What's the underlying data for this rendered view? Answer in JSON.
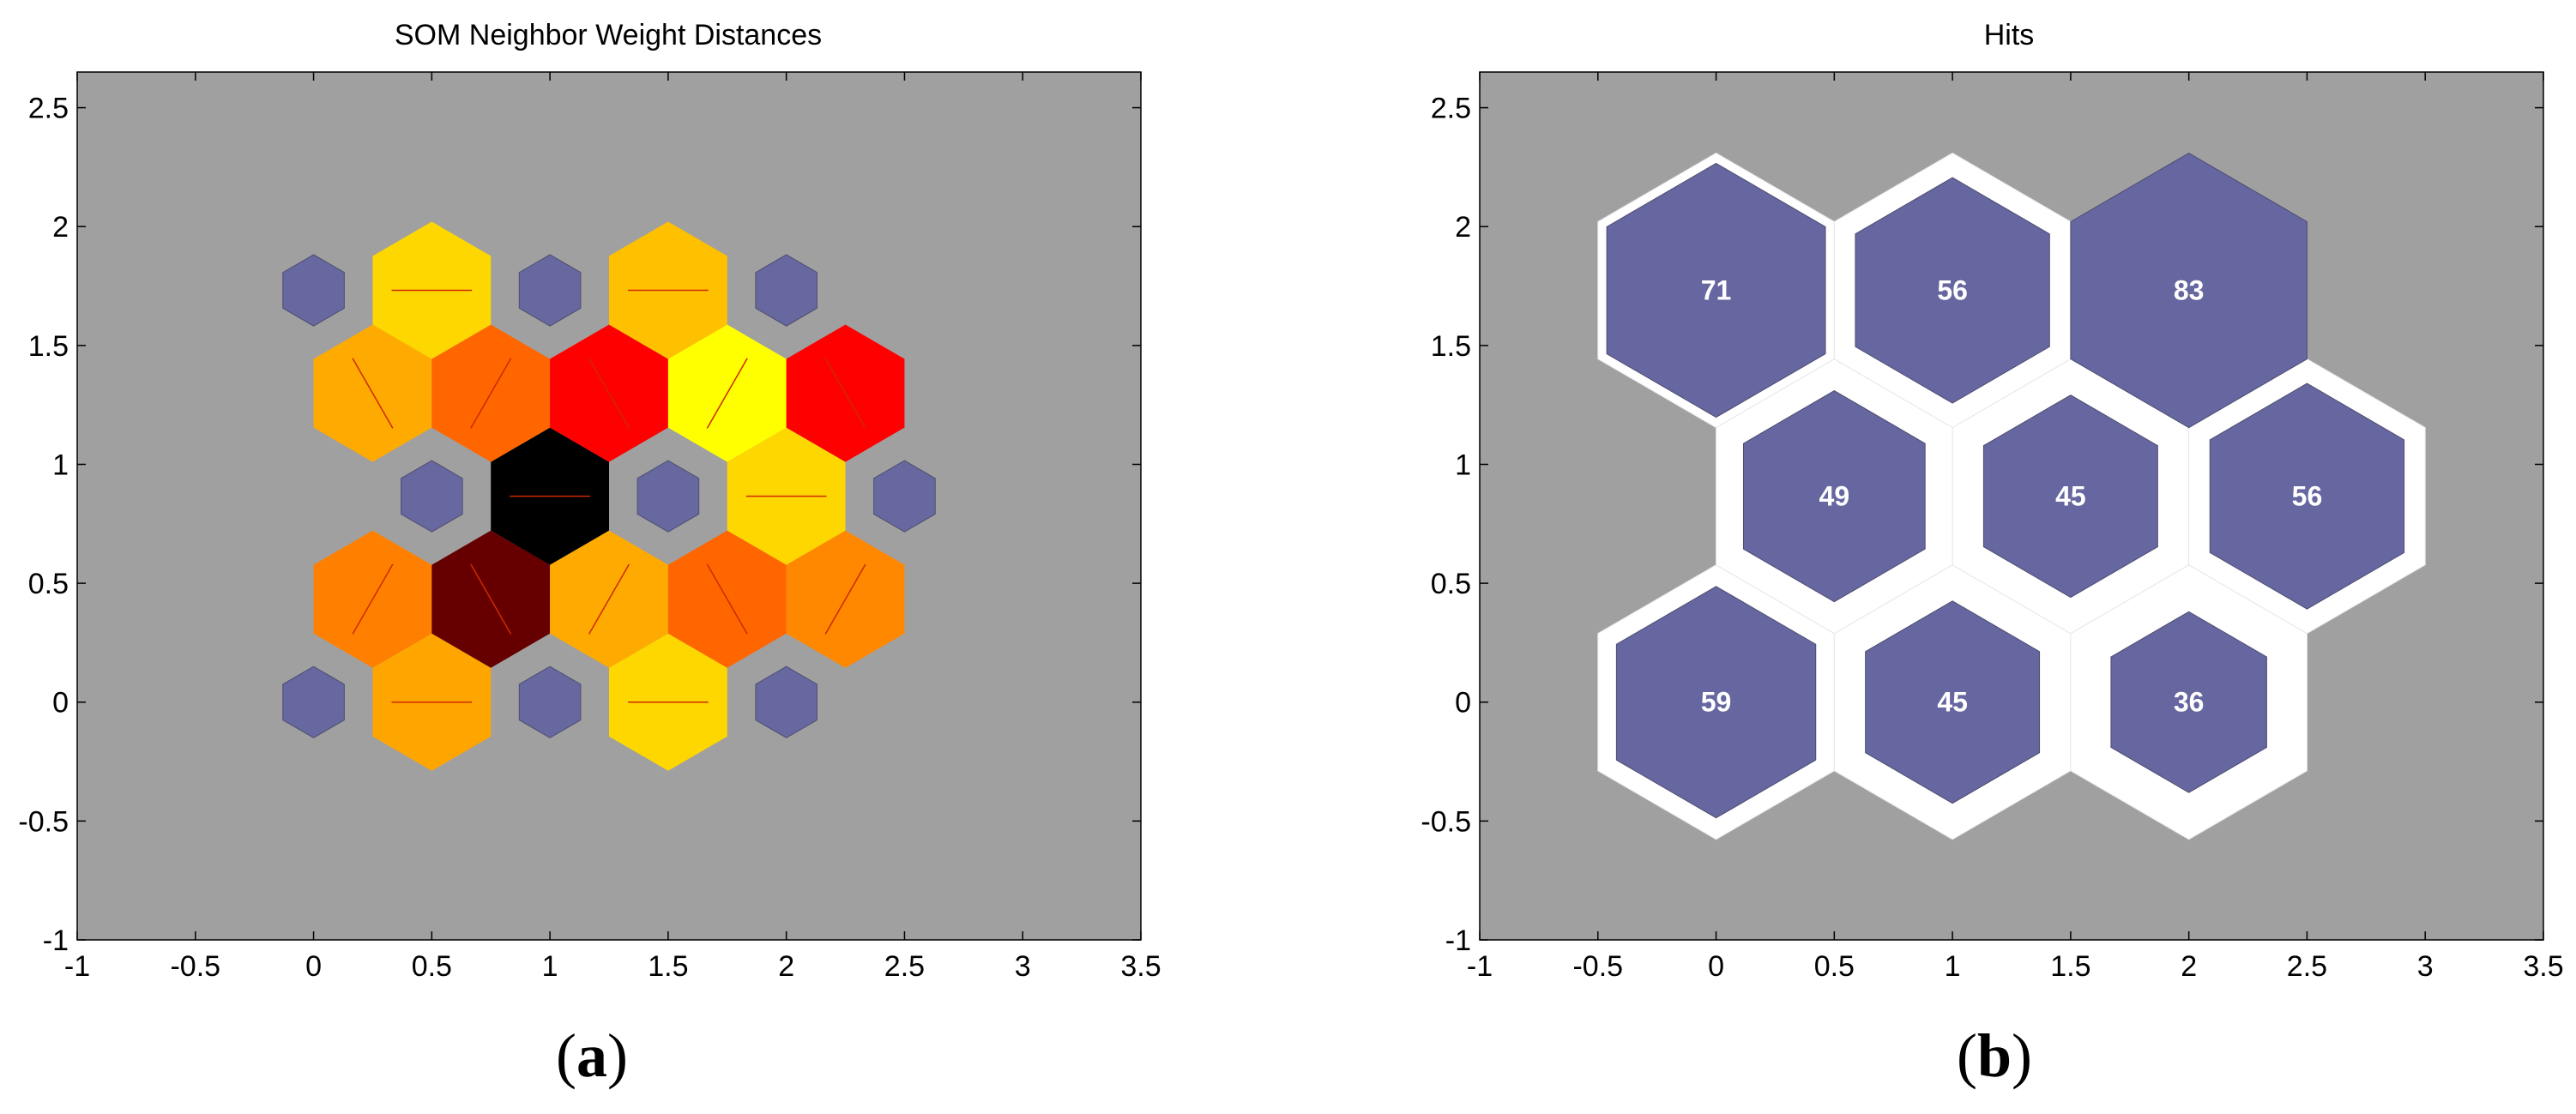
{
  "chart_data": [
    {
      "type": "heatmap",
      "title": "SOM Neighbor Weight Distances",
      "panel_label": "a",
      "xlim": [
        -1,
        3.5
      ],
      "ylim": [
        -1,
        2.65
      ],
      "xticks": [
        "-1",
        "-0.5",
        "0",
        "0.5",
        "1",
        "1.5",
        "2",
        "2.5",
        "3",
        "3.5"
      ],
      "yticks": [
        "-1",
        "-0.5",
        "0",
        "0.5",
        "1",
        "1.5",
        "2",
        "2.5"
      ],
      "grid": false,
      "background_color": "#a0a0a0",
      "neuron_color": "#6868a0",
      "neurons": [
        {
          "x": 0,
          "y": 0
        },
        {
          "x": 1,
          "y": 0
        },
        {
          "x": 2,
          "y": 0
        },
        {
          "x": 0.5,
          "y": 0.866
        },
        {
          "x": 1.5,
          "y": 0.866
        },
        {
          "x": 2.5,
          "y": 0.866
        },
        {
          "x": 0,
          "y": 1.732
        },
        {
          "x": 1,
          "y": 1.732
        },
        {
          "x": 2,
          "y": 1.732
        }
      ],
      "distance_cells": [
        {
          "x": 0.5,
          "y": 0,
          "color": "#ffa500"
        },
        {
          "x": 1.5,
          "y": 0,
          "color": "#ffd700"
        },
        {
          "x": 0.25,
          "y": 0.433,
          "color": "#ff8000"
        },
        {
          "x": 0.75,
          "y": 0.433,
          "color": "#660000"
        },
        {
          "x": 1.25,
          "y": 0.433,
          "color": "#ffaa00"
        },
        {
          "x": 1.75,
          "y": 0.433,
          "color": "#ff6600"
        },
        {
          "x": 2.25,
          "y": 0.433,
          "color": "#ff8800"
        },
        {
          "x": 1,
          "y": 0.866,
          "color": "#000000"
        },
        {
          "x": 2,
          "y": 0.866,
          "color": "#ffd700"
        },
        {
          "x": 0.25,
          "y": 1.299,
          "color": "#ffaa00"
        },
        {
          "x": 0.75,
          "y": 1.299,
          "color": "#ff6600"
        },
        {
          "x": 1.25,
          "y": 1.299,
          "color": "#ff0000"
        },
        {
          "x": 1.75,
          "y": 1.299,
          "color": "#ffff00"
        },
        {
          "x": 2.25,
          "y": 1.299,
          "color": "#ff0000"
        },
        {
          "x": 0.5,
          "y": 1.732,
          "color": "#ffd700"
        },
        {
          "x": 1.5,
          "y": 1.732,
          "color": "#ffc000"
        }
      ]
    },
    {
      "type": "heatmap",
      "title": "Hits",
      "panel_label": "b",
      "xlim": [
        -1,
        3.5
      ],
      "ylim": [
        -1,
        2.65
      ],
      "xticks": [
        "-1",
        "-0.5",
        "0",
        "0.5",
        "1",
        "1.5",
        "2",
        "2.5",
        "3",
        "3.5"
      ],
      "yticks": [
        "-1",
        "-0.5",
        "0",
        "0.5",
        "1",
        "1.5",
        "2",
        "2.5"
      ],
      "grid": false,
      "background_color": "#a0a0a0",
      "hit_color": "#6666a0",
      "max_hits": 83,
      "cells": [
        {
          "x": 0,
          "y": 0,
          "hits": 59
        },
        {
          "x": 1,
          "y": 0,
          "hits": 45
        },
        {
          "x": 2,
          "y": 0,
          "hits": 36
        },
        {
          "x": 0.5,
          "y": 0.866,
          "hits": 49
        },
        {
          "x": 1.5,
          "y": 0.866,
          "hits": 45
        },
        {
          "x": 2.5,
          "y": 0.866,
          "hits": 56
        },
        {
          "x": 0,
          "y": 1.732,
          "hits": 71
        },
        {
          "x": 1,
          "y": 1.732,
          "hits": 56
        },
        {
          "x": 2,
          "y": 1.732,
          "hits": 83
        }
      ]
    }
  ]
}
